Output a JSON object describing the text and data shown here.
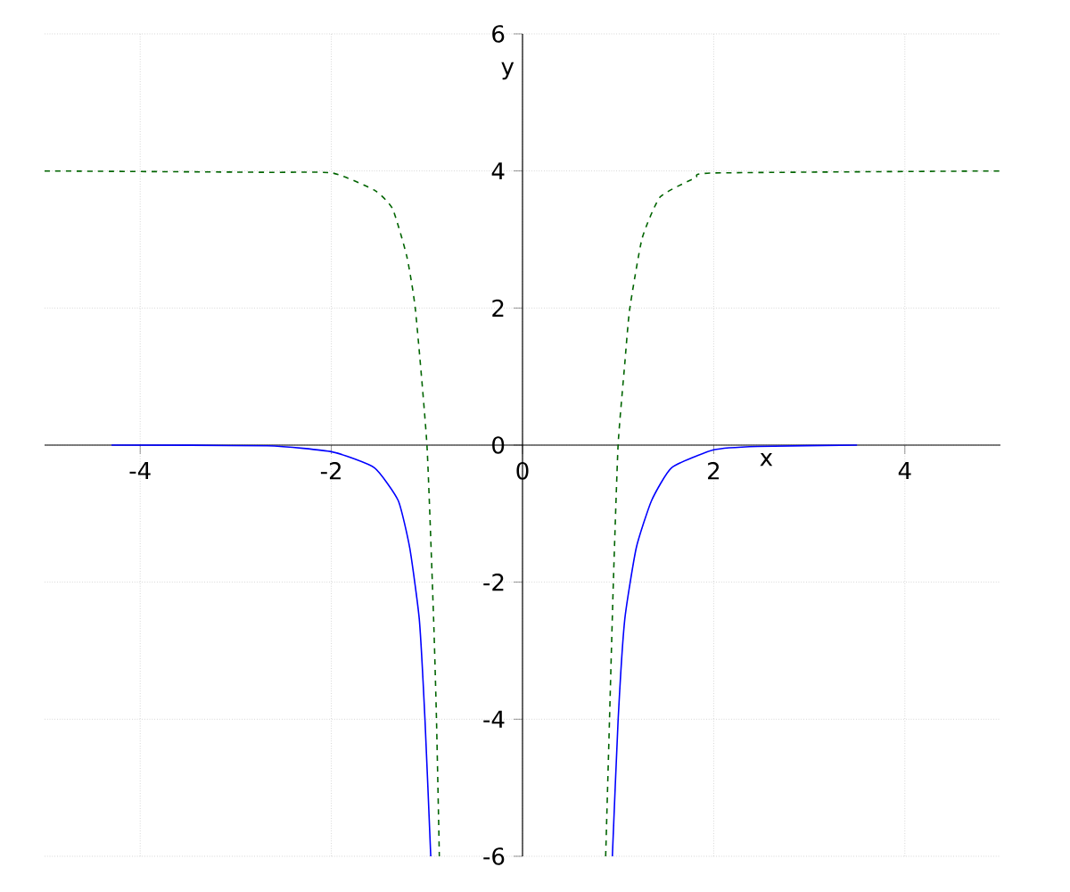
{
  "chart_data": {
    "type": "line",
    "xlabel": "x",
    "ylabel": "y",
    "xlim": [
      -5,
      5
    ],
    "ylim": [
      -6,
      6
    ],
    "xticks": [
      -4,
      -2,
      0,
      2,
      4
    ],
    "yticks": [
      -6,
      -4,
      -2,
      0,
      2,
      4,
      6
    ],
    "grid": true,
    "series": [
      {
        "color": "#0000ff",
        "line_style": "solid",
        "x": [
          -4.3,
          -2.67,
          -1.99,
          -1.55,
          -1.3,
          -1.18,
          -1.08,
          -1.02,
          -0.96
        ],
        "values": [
          0,
          -0.01,
          -0.1,
          -0.33,
          -0.81,
          -1.5,
          -2.54,
          -4.02,
          -6
        ]
      },
      {
        "color": "#0000ff",
        "line_style": "solid",
        "x": [
          0.94,
          1.0,
          1.07,
          1.19,
          1.35,
          1.56,
          2.0,
          2.46,
          3.5
        ],
        "values": [
          -6,
          -4.02,
          -2.54,
          -1.5,
          -0.81,
          -0.33,
          -0.07,
          -0.02,
          0
        ]
      },
      {
        "color": "#006400",
        "line_style": "dashed",
        "x": [
          -5,
          -2.67,
          -1.99,
          -1.55,
          -1.36,
          -1.21,
          -1.12,
          -1.0,
          -0.93,
          -0.9,
          -0.87
        ],
        "values": [
          4,
          3.98,
          3.97,
          3.72,
          3.45,
          2.75,
          1.97,
          0,
          -2.54,
          -4.01,
          -6
        ]
      },
      {
        "color": "#006400",
        "line_style": "dashed",
        "x": [
          0.87,
          0.91,
          0.95,
          1.0,
          1.07,
          1.12,
          1.25,
          1.44,
          1.81,
          2.0,
          5
        ],
        "values": [
          -6,
          -4.01,
          -2.02,
          0,
          1.19,
          1.97,
          3.01,
          3.62,
          3.9,
          3.97,
          4
        ]
      }
    ]
  }
}
